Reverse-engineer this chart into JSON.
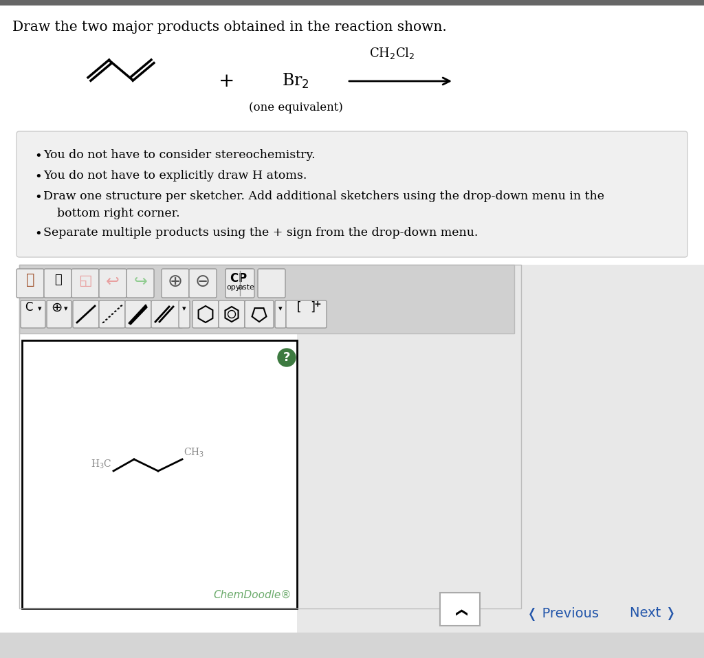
{
  "title": "Draw the two major products obtained in the reaction shown.",
  "background_color": "#ffffff",
  "page_bg": "#ffffff",
  "bullet_points": [
    "You do not have to consider stereochemistry.",
    "You do not have to explicitly draw H atoms.",
    "Draw one structure per sketcher. Add additional sketchers using the drop-down menu in the",
    "bottom right corner.",
    "Separate multiple products using the + sign from the drop-down menu."
  ],
  "reaction_br2": "Br$_2$",
  "reaction_solvent": "CH$_2$Cl$_2$",
  "reaction_equiv": "(one equivalent)",
  "chemdoodle_label": "ChemDoodle®",
  "prev_label": "❬ Previous",
  "next_label": "Next ❭",
  "bullet_box_bg": "#f0f0f0",
  "bullet_box_edge": "#cccccc",
  "toolbar_bg": "#d0d0d0",
  "toolbar_edge": "#bbbbbb",
  "sketcher_bg": "#ffffff",
  "sketcher_border": "#000000",
  "green_circle_color": "#3d7a40",
  "chemdoodle_color": "#6aaa6a",
  "nav_color": "#2255aa",
  "top_bar_color": "#666666",
  "bottom_area_color": "#e0e0e0"
}
